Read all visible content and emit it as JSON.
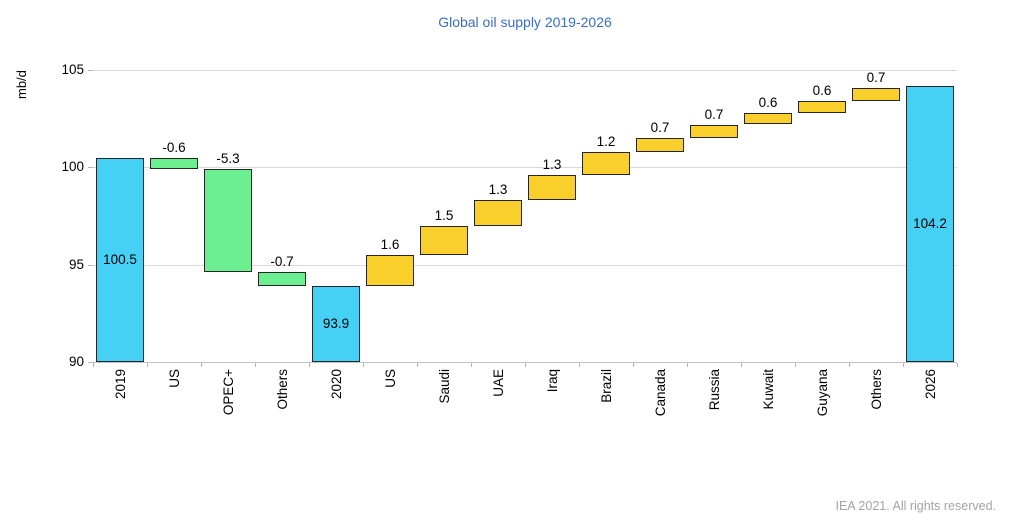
{
  "chart_data": {
    "type": "bar",
    "subtype": "waterfall",
    "title": "Global oil supply 2019-2026",
    "ylabel": "mb/d",
    "ylim": [
      90,
      105
    ],
    "yticks": [
      90,
      95,
      100,
      105
    ],
    "grid": "horizontal",
    "legend": "none",
    "bars": [
      {
        "label": "2019",
        "kind": "total",
        "value": 100.5
      },
      {
        "label": "US",
        "kind": "decrease",
        "value": -0.6
      },
      {
        "label": "OPEC+",
        "kind": "decrease",
        "value": -5.3
      },
      {
        "label": "Others",
        "kind": "decrease",
        "value": -0.7
      },
      {
        "label": "2020",
        "kind": "total",
        "value": 93.9
      },
      {
        "label": "US",
        "kind": "increase",
        "value": 1.6
      },
      {
        "label": "Saudi",
        "kind": "increase",
        "value": 1.5
      },
      {
        "label": "UAE",
        "kind": "increase",
        "value": 1.3
      },
      {
        "label": "Iraq",
        "kind": "increase",
        "value": 1.3
      },
      {
        "label": "Brazil",
        "kind": "increase",
        "value": 1.2
      },
      {
        "label": "Canada",
        "kind": "increase",
        "value": 0.7
      },
      {
        "label": "Russia",
        "kind": "increase",
        "value": 0.7
      },
      {
        "label": "Kuwait",
        "kind": "increase",
        "value": 0.6
      },
      {
        "label": "Guyana",
        "kind": "increase",
        "value": 0.6
      },
      {
        "label": "Others",
        "kind": "increase",
        "value": 0.7
      },
      {
        "label": "2026",
        "kind": "total",
        "value": 104.2
      }
    ],
    "colors": {
      "total": "#45d0f5",
      "decrease": "#6bef91",
      "increase": "#f9cf2b",
      "bar_border": "#262626",
      "title": "#3a6ec5",
      "grid": "#dadada",
      "axis": "#c4c4c4",
      "tick": "#b5b5b5",
      "text": "#000000",
      "footer": "#a3a3a3"
    }
  },
  "footer": "IEA 2021. All rights reserved."
}
